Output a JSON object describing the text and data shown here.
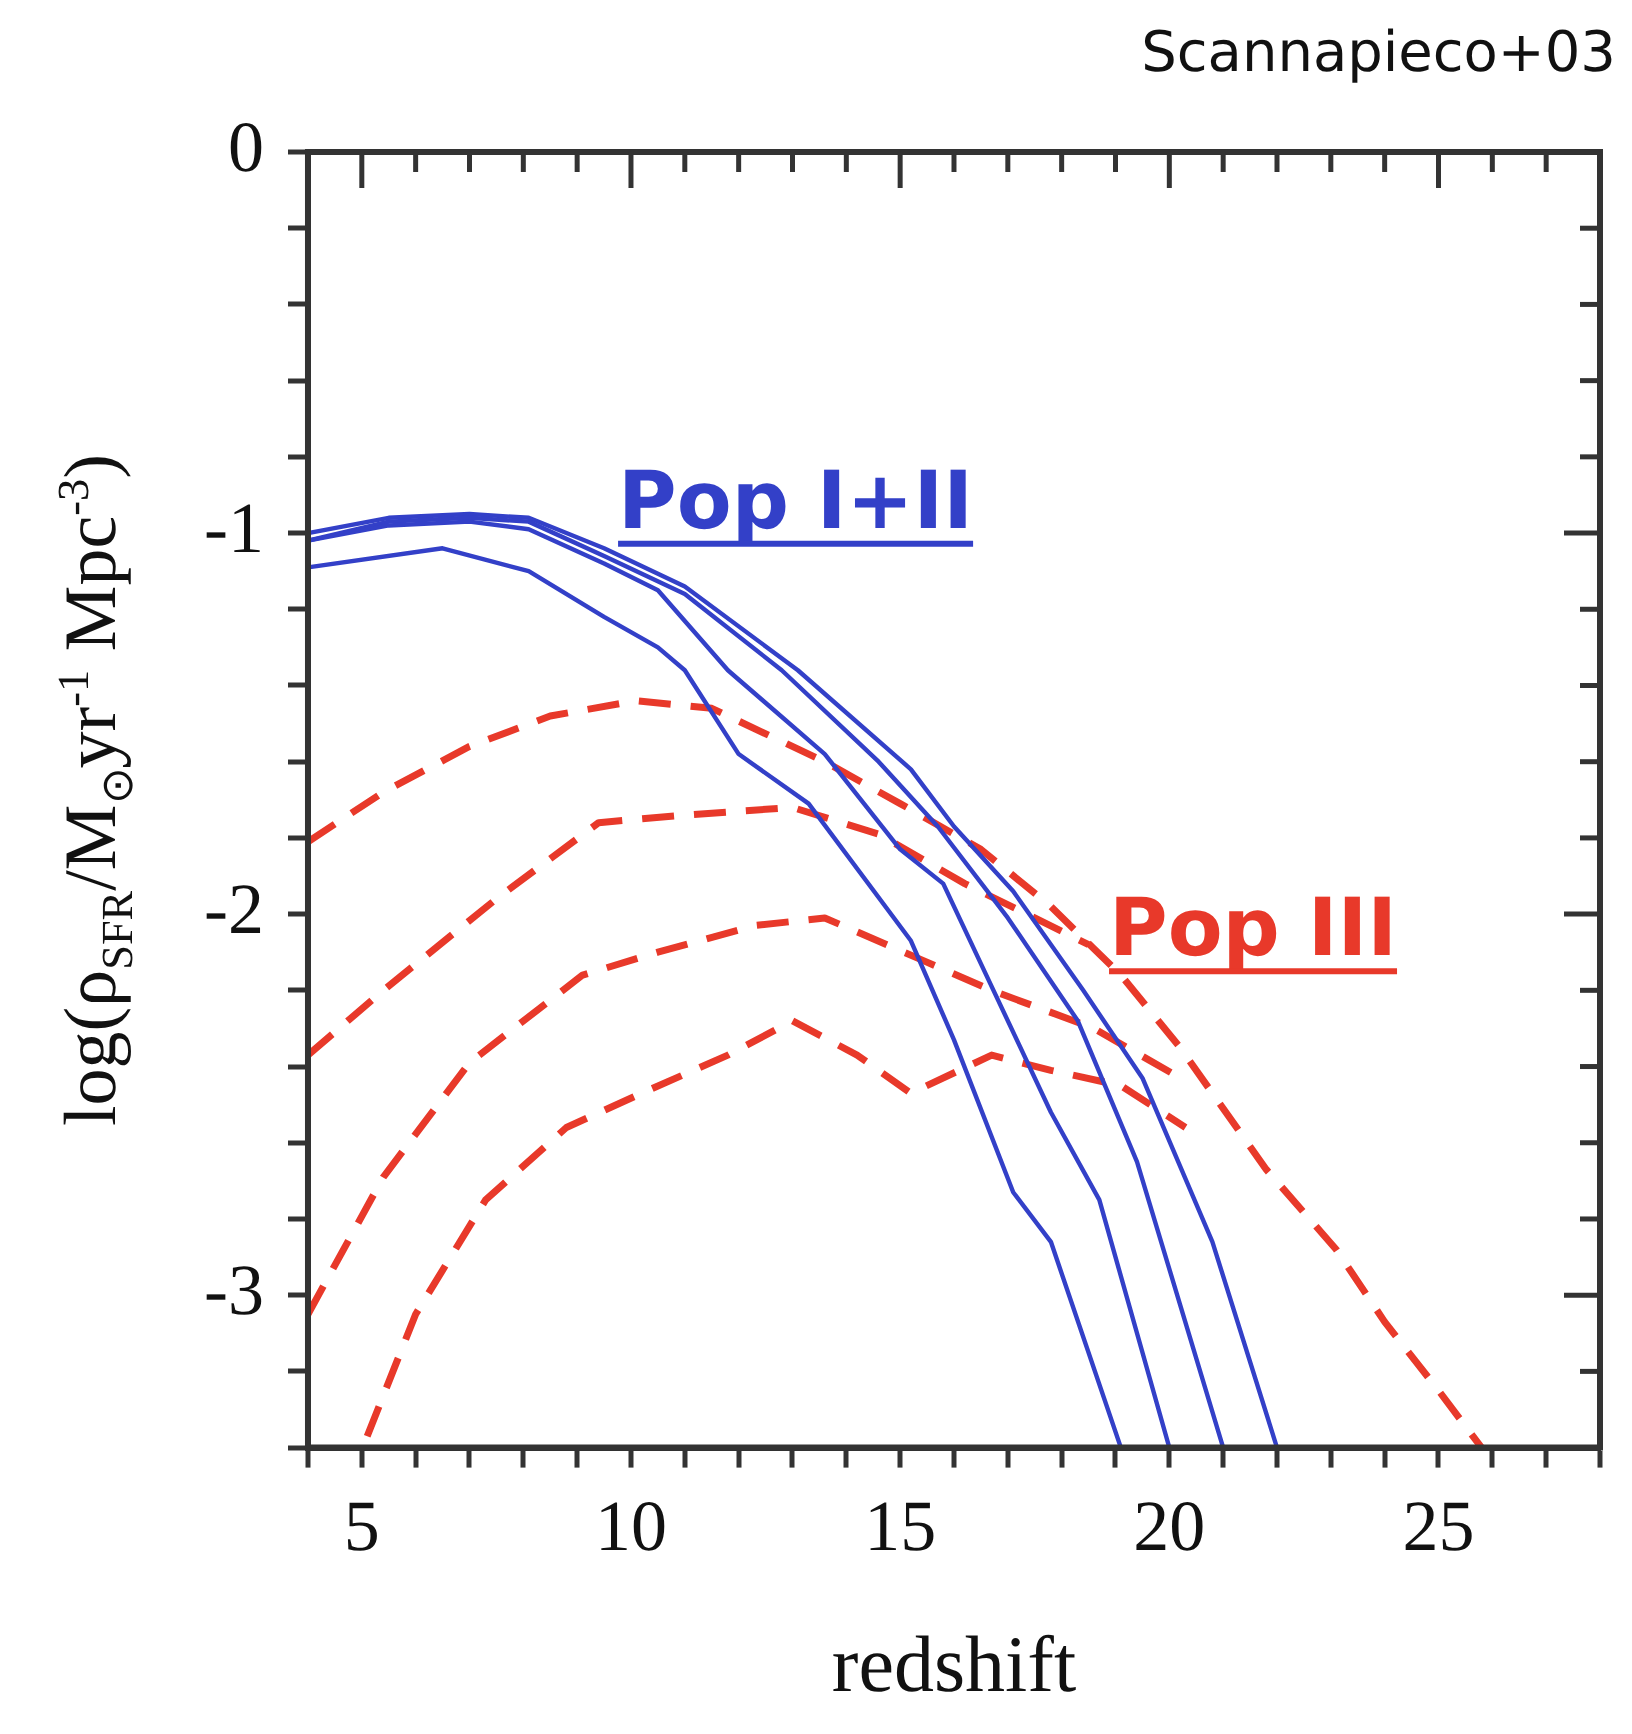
{
  "chart_data": {
    "type": "line",
    "xlabel": "redshift",
    "ylabel": "log(ρ$_{SFR}$/M$_{⊙}$yr$^{-1}$ Mpc$^{-3}$)",
    "annotations": [
      "Scannapieco+03"
    ],
    "xlim": [
      4,
      28
    ],
    "ylim": [
      -3.4,
      0
    ],
    "xticks": [
      {
        "value": 4,
        "label": null
      },
      5,
      {
        "value": 6,
        "label": null
      },
      {
        "value": 7,
        "label": null
      },
      {
        "value": 8,
        "label": null
      },
      {
        "value": 9,
        "label": null
      },
      10,
      {
        "value": 11,
        "label": null
      },
      {
        "value": 12,
        "label": null
      },
      {
        "value": 13,
        "label": null
      },
      {
        "value": 14,
        "label": null
      },
      15,
      {
        "value": 16,
        "label": null
      },
      {
        "value": 17,
        "label": null
      },
      {
        "value": 18,
        "label": null
      },
      {
        "value": 19,
        "label": null
      },
      20,
      {
        "value": 21,
        "label": null
      },
      {
        "value": 22,
        "label": null
      },
      {
        "value": 23,
        "label": null
      },
      {
        "value": 24,
        "label": null
      },
      25,
      {
        "value": 26,
        "label": null
      },
      {
        "value": 27,
        "label": null
      },
      {
        "value": 28,
        "label": null
      }
    ],
    "yticks": [
      {
        "value": -3.4,
        "label": null
      },
      {
        "value": -3.2,
        "label": null
      },
      -3,
      {
        "value": -2.8,
        "label": null
      },
      {
        "value": -2.6,
        "label": null
      },
      {
        "value": -2.4,
        "label": null
      },
      {
        "value": -2.2,
        "label": null
      },
      -2,
      {
        "value": -1.8,
        "label": null
      },
      {
        "value": -1.6,
        "label": null
      },
      {
        "value": -1.4,
        "label": null
      },
      {
        "value": -1.2,
        "label": null
      },
      -1,
      {
        "value": -0.8,
        "label": null
      },
      {
        "value": -0.6,
        "label": null
      },
      {
        "value": -0.4,
        "label": null
      },
      {
        "value": -0.2,
        "label": null
      },
      0
    ],
    "series": [
      {
        "name": "Pop I+II",
        "color": "#3340c8",
        "line_style": "solid",
        "x": [
          4,
          5.5,
          7,
          8.1,
          9.5,
          10.5,
          11.8,
          13.6,
          15,
          15.8,
          16.6,
          17.8,
          18.7,
          20
        ],
        "values": [
          -1.02,
          -0.98,
          -0.97,
          -0.99,
          -1.08,
          -1.15,
          -1.36,
          -1.58,
          -1.83,
          -1.92,
          -2.16,
          -2.52,
          -2.75,
          -3.4
        ]
      },
      {
        "color": "#3340c8",
        "line_style": "solid",
        "x": [
          4,
          6.5,
          8.1,
          9.5,
          10.5,
          11,
          12,
          13.3,
          15.2,
          16,
          17.1,
          17.8,
          19.1
        ],
        "values": [
          -1.09,
          -1.04,
          -1.1,
          -1.22,
          -1.3,
          -1.36,
          -1.58,
          -1.71,
          -2.07,
          -2.33,
          -2.73,
          -2.86,
          -3.4
        ]
      },
      {
        "color": "#3340c8",
        "line_style": "solid",
        "x": [
          4,
          5.5,
          7,
          8.1,
          9.5,
          11,
          12.8,
          14.6,
          15.7,
          17,
          18.3,
          19.4,
          21
        ],
        "values": [
          -1.02,
          -0.97,
          -0.96,
          -0.97,
          -1.06,
          -1.16,
          -1.36,
          -1.6,
          -1.77,
          -2.01,
          -2.28,
          -2.65,
          -3.4
        ]
      },
      {
        "color": "#3340c8",
        "line_style": "solid",
        "x": [
          4,
          5.5,
          7,
          8.1,
          9.5,
          11,
          13.1,
          15.2,
          16,
          17.1,
          18.4,
          19.5,
          20.8,
          22
        ],
        "values": [
          -1.0,
          -0.96,
          -0.95,
          -0.96,
          -1.04,
          -1.14,
          -1.36,
          -1.62,
          -1.77,
          -1.94,
          -2.2,
          -2.43,
          -2.86,
          -3.4
        ]
      },
      {
        "name": "Pop III",
        "color": "#e8392a",
        "line_style": "dashed",
        "x": [
          4,
          5.4,
          7,
          8.5,
          10.1,
          11.5,
          13.6,
          15,
          16.5,
          17.8,
          19.1,
          20.2,
          21.8,
          23.1,
          24,
          25,
          25.8
        ],
        "values": [
          -1.81,
          -1.68,
          -1.56,
          -1.48,
          -1.44,
          -1.46,
          -1.6,
          -1.71,
          -1.83,
          -1.98,
          -2.16,
          -2.35,
          -2.67,
          -2.88,
          -3.07,
          -3.25,
          -3.4
        ]
      },
      {
        "color": "#e8392a",
        "line_style": "dashed",
        "x": [
          4,
          5.4,
          7.5,
          9.4,
          11,
          13,
          14.6,
          16.2,
          17.5,
          18.5
        ],
        "values": [
          -2.37,
          -2.2,
          -1.96,
          -1.76,
          -1.74,
          -1.72,
          -1.79,
          -1.92,
          -2.01,
          -2.08
        ]
      },
      {
        "color": "#e8392a",
        "line_style": "dashed",
        "x": [
          4,
          5.4,
          7,
          9.1,
          10.5,
          12.3,
          13.6,
          15.4,
          16.7,
          18.6,
          20.2
        ],
        "values": [
          -3.05,
          -2.69,
          -2.39,
          -2.16,
          -2.1,
          -2.03,
          -2.01,
          -2.12,
          -2.2,
          -2.3,
          -2.43
        ]
      },
      {
        "color": "#e8392a",
        "line_style": "dashed",
        "x": [
          5.1,
          6,
          7.3,
          8.8,
          10.2,
          11.8,
          13,
          14.2,
          15.2,
          16.7,
          17.8,
          19.1,
          20.3
        ],
        "values": [
          -3.37,
          -3.05,
          -2.75,
          -2.56,
          -2.47,
          -2.37,
          -2.28,
          -2.37,
          -2.47,
          -2.37,
          -2.41,
          -2.45,
          -2.56
        ]
      }
    ]
  }
}
